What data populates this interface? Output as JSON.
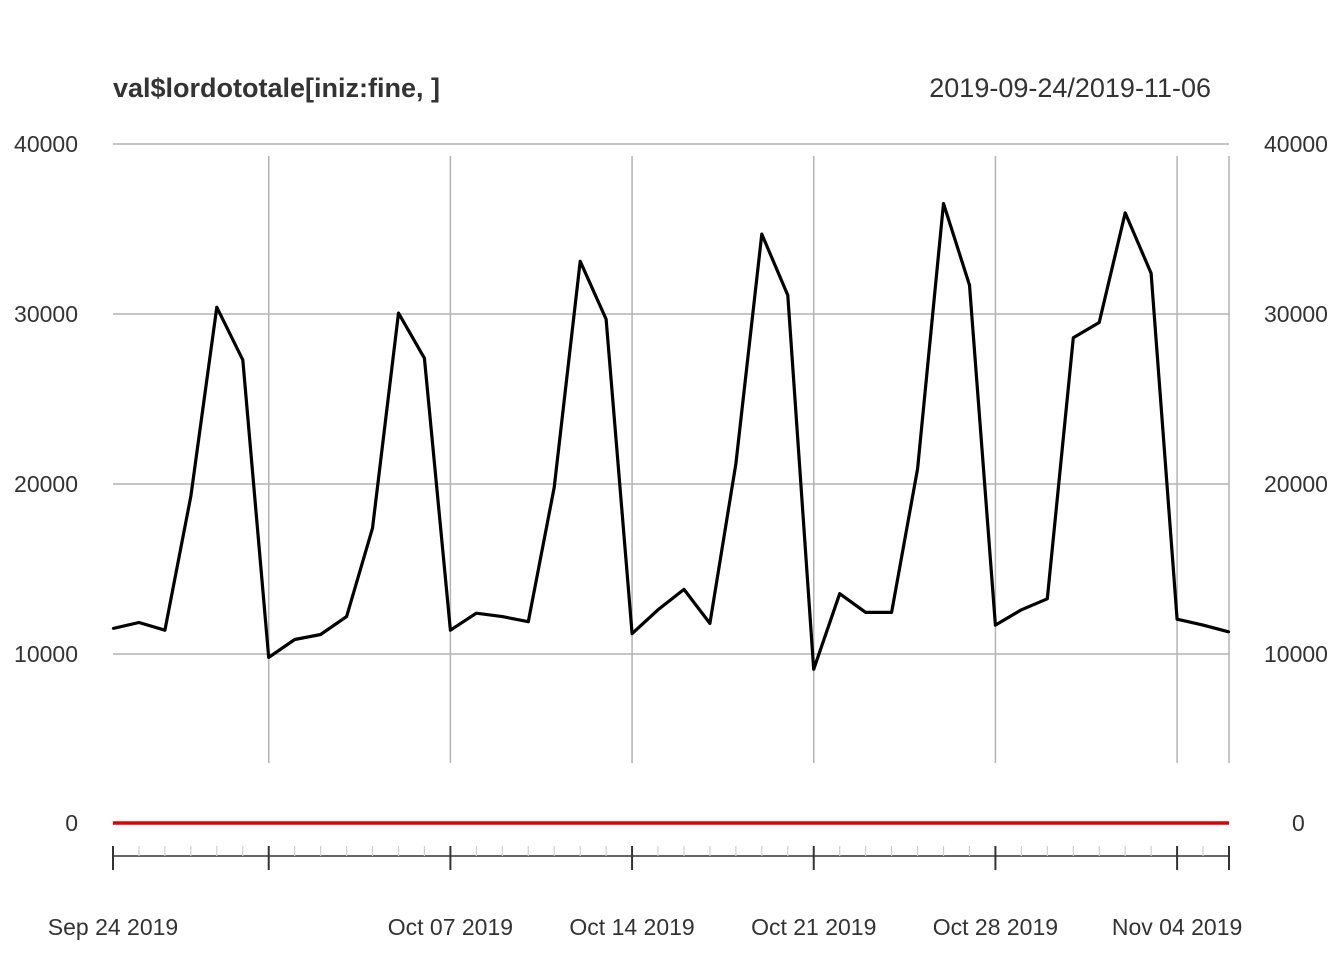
{
  "chart_data": {
    "type": "line",
    "title": "val$lordototale[iniz:fine, ]",
    "date_range": "2019-09-24/2019-11-06",
    "xlabel": "",
    "ylabel": "",
    "ylim": [
      4000,
      40000
    ],
    "y_ticks": [
      10000,
      20000,
      30000,
      40000
    ],
    "grid": true,
    "x_range": [
      "2019-09-24",
      "2019-11-06"
    ],
    "x_tick_labels": [
      {
        "date": "2019-09-24",
        "label": "Sep 24 2019"
      },
      {
        "date": "2019-09-30",
        "label": ""
      },
      {
        "date": "2019-10-07",
        "label": "Oct 07 2019"
      },
      {
        "date": "2019-10-14",
        "label": "Oct 14 2019"
      },
      {
        "date": "2019-10-21",
        "label": "Oct 21 2019"
      },
      {
        "date": "2019-10-28",
        "label": "Oct 28 2019"
      },
      {
        "date": "2019-11-04",
        "label": "Nov 04 2019"
      },
      {
        "date": "2019-11-06",
        "label": ""
      }
    ],
    "series": [
      {
        "color": "#000000",
        "x": [
          "2019-09-24",
          "2019-09-25",
          "2019-09-26",
          "2019-09-27",
          "2019-09-28",
          "2019-09-29",
          "2019-09-30",
          "2019-10-01",
          "2019-10-02",
          "2019-10-03",
          "2019-10-04",
          "2019-10-05",
          "2019-10-06",
          "2019-10-07",
          "2019-10-08",
          "2019-10-09",
          "2019-10-10",
          "2019-10-11",
          "2019-10-12",
          "2019-10-13",
          "2019-10-14",
          "2019-10-15",
          "2019-10-16",
          "2019-10-17",
          "2019-10-18",
          "2019-10-19",
          "2019-10-20",
          "2019-10-21",
          "2019-10-22",
          "2019-10-23",
          "2019-10-24",
          "2019-10-25",
          "2019-10-26",
          "2019-10-27",
          "2019-10-28",
          "2019-10-29",
          "2019-10-30",
          "2019-10-31",
          "2019-11-01",
          "2019-11-02",
          "2019-11-03",
          "2019-11-04",
          "2019-11-05",
          "2019-11-06"
        ],
        "values": [
          11500,
          11850,
          11400,
          19300,
          30400,
          27300,
          9800,
          10850,
          11150,
          12200,
          17400,
          30050,
          27400,
          11400,
          12400,
          12200,
          11900,
          19800,
          33100,
          29700,
          11200,
          12600,
          13800,
          11800,
          21200,
          34700,
          31100,
          9100,
          13550,
          12450,
          12450,
          20900,
          36500,
          31700,
          11700,
          12600,
          13250,
          28600,
          29500,
          35950,
          32400,
          12050,
          11700,
          11300
        ]
      }
    ],
    "zero_line": {
      "value": 0,
      "label": "0",
      "color": "#dd0000"
    }
  }
}
